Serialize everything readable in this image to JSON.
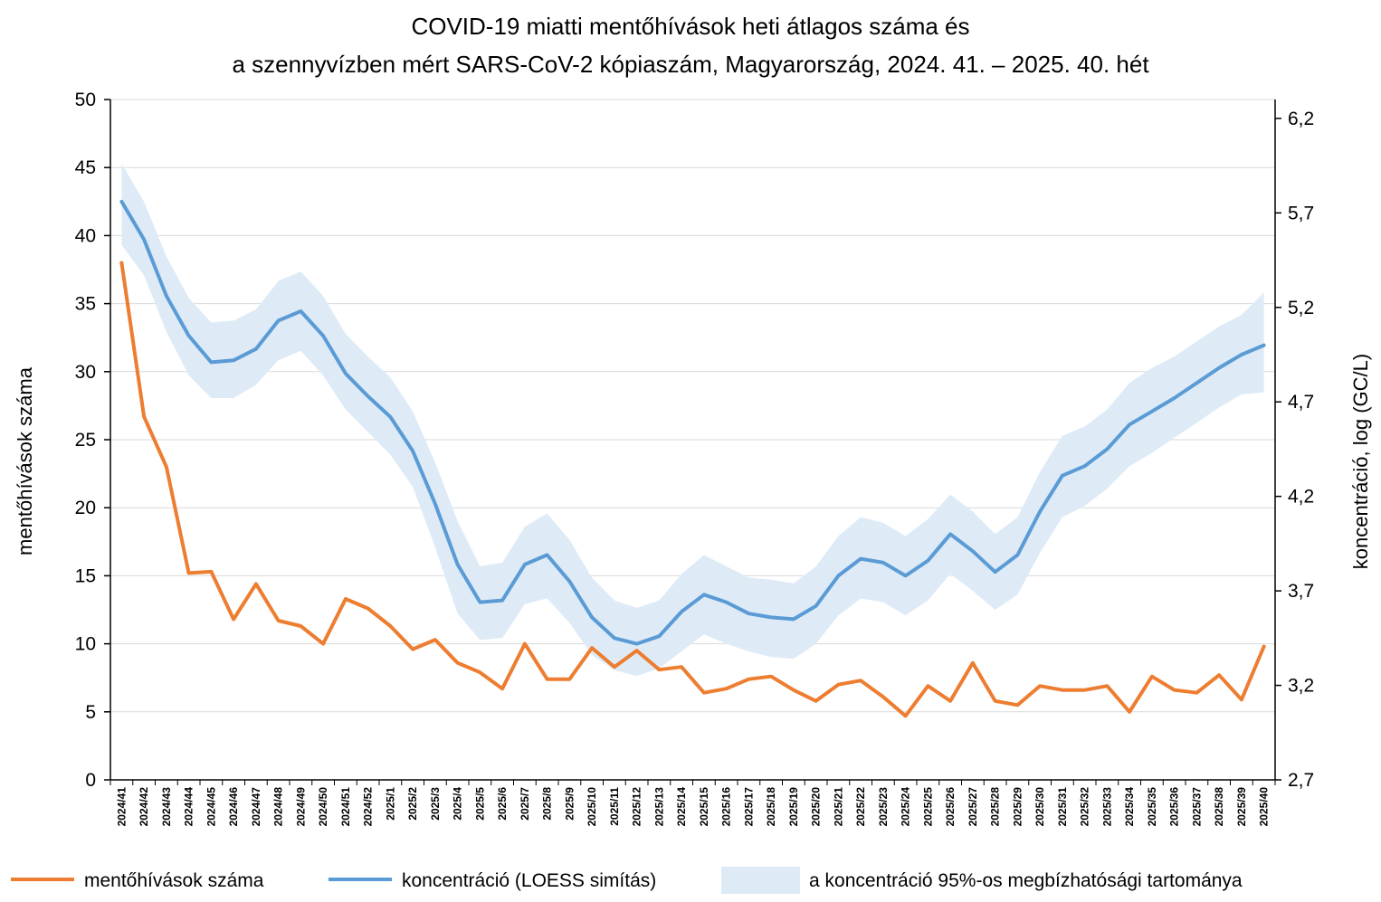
{
  "chart_data": {
    "type": "line",
    "title_line1": "COVID-19 miatti mentőhívások heti átlagos száma és",
    "title_line2": "a szennyvízben mért SARS-CoV-2 kópiaszám, Magyarország, 2024. 41. – 2025. 40. hét",
    "ylabel_left": "mentőhívások száma",
    "ylabel_right": "koncentráció, log (GC/L)",
    "ylim_left": [
      0,
      50
    ],
    "ylim_right": [
      2.7,
      6.3
    ],
    "yticks_left": [
      "0",
      "5",
      "10",
      "15",
      "20",
      "25",
      "30",
      "35",
      "40",
      "45",
      "50"
    ],
    "yticks_right": [
      "2,7",
      "3,2",
      "3,7",
      "4,2",
      "4,7",
      "5,2",
      "5,7",
      "6,2"
    ],
    "categories": [
      "2024/41",
      "2024/42",
      "2024/43",
      "2024/44",
      "2024/45",
      "2024/46",
      "2024/47",
      "2024/48",
      "2024/49",
      "2024/50",
      "2024/51",
      "2024/52",
      "2025/1",
      "2025/2",
      "2025/3",
      "2025/4",
      "2025/5",
      "2025/6",
      "2025/7",
      "2025/8",
      "2025/9",
      "2025/10",
      "2025/11",
      "2025/12",
      "2025/13",
      "2025/14",
      "2025/15",
      "2025/16",
      "2025/17",
      "2025/18",
      "2025/19",
      "2025/20",
      "2025/21",
      "2025/22",
      "2025/23",
      "2025/24",
      "2025/25",
      "2025/26",
      "2025/27",
      "2025/28",
      "2025/29",
      "2025/30",
      "2025/31",
      "2025/32",
      "2025/33",
      "2025/34",
      "2025/35",
      "2025/36",
      "2025/37",
      "2025/38",
      "2025/39",
      "2025/40"
    ],
    "series": [
      {
        "name": "mentőhívások száma",
        "axis": "left",
        "color": "#ED7D31",
        "values": [
          38.0,
          26.7,
          23.0,
          15.2,
          15.3,
          11.8,
          14.4,
          11.7,
          11.3,
          10.0,
          13.3,
          12.6,
          11.3,
          9.6,
          10.3,
          8.6,
          7.9,
          6.7,
          10.0,
          7.4,
          7.4,
          9.7,
          8.3,
          9.5,
          8.1,
          8.3,
          6.4,
          6.7,
          7.4,
          7.6,
          6.6,
          5.8,
          7.0,
          7.3,
          6.1,
          4.7,
          6.9,
          5.8,
          8.6,
          5.8,
          5.5,
          6.9,
          6.6,
          6.6,
          6.9,
          5.0,
          7.6,
          6.6,
          6.4,
          7.7,
          5.9,
          9.8
        ]
      },
      {
        "name": "koncentráció (LOESS simítás)",
        "axis": "right",
        "color": "#5B9BD5",
        "values": [
          5.76,
          5.56,
          5.26,
          5.05,
          4.91,
          4.92,
          4.98,
          5.13,
          5.18,
          5.05,
          4.85,
          4.73,
          4.62,
          4.44,
          4.16,
          3.84,
          3.64,
          3.65,
          3.84,
          3.89,
          3.75,
          3.56,
          3.45,
          3.42,
          3.46,
          3.59,
          3.68,
          3.64,
          3.58,
          3.56,
          3.55,
          3.62,
          3.78,
          3.87,
          3.85,
          3.78,
          3.86,
          4.0,
          3.91,
          3.8,
          3.89,
          4.12,
          4.31,
          4.36,
          4.45,
          4.58,
          4.65,
          4.72,
          4.8,
          4.88,
          4.95,
          5.0
        ]
      }
    ],
    "band": {
      "name": "a koncentráció 95%-os megbízhatósági tartománya",
      "axis": "right",
      "color": "#DEEBF7",
      "lower": [
        5.53,
        5.37,
        5.07,
        4.84,
        4.72,
        4.72,
        4.79,
        4.92,
        4.97,
        4.84,
        4.66,
        4.54,
        4.42,
        4.25,
        3.93,
        3.58,
        3.44,
        3.45,
        3.63,
        3.66,
        3.53,
        3.36,
        3.28,
        3.25,
        3.29,
        3.38,
        3.47,
        3.42,
        3.38,
        3.35,
        3.34,
        3.42,
        3.57,
        3.66,
        3.64,
        3.57,
        3.65,
        3.79,
        3.7,
        3.6,
        3.68,
        3.9,
        4.09,
        4.15,
        4.24,
        4.36,
        4.43,
        4.51,
        4.59,
        4.67,
        4.74,
        4.75
      ],
      "upper": [
        5.96,
        5.76,
        5.47,
        5.25,
        5.12,
        5.13,
        5.19,
        5.34,
        5.39,
        5.26,
        5.06,
        4.94,
        4.83,
        4.65,
        4.38,
        4.07,
        3.83,
        3.85,
        4.04,
        4.11,
        3.97,
        3.77,
        3.65,
        3.61,
        3.65,
        3.79,
        3.89,
        3.83,
        3.77,
        3.76,
        3.74,
        3.83,
        3.99,
        4.09,
        4.06,
        3.99,
        4.08,
        4.21,
        4.12,
        4.0,
        4.09,
        4.33,
        4.52,
        4.57,
        4.66,
        4.8,
        4.88,
        4.94,
        5.02,
        5.1,
        5.16,
        5.28
      ]
    },
    "legend": {
      "position": "bottom",
      "items": [
        "mentőhívások száma",
        "koncentráció (LOESS simítás)",
        "a koncentráció 95%-os megbízhatósági tartománya"
      ]
    }
  }
}
